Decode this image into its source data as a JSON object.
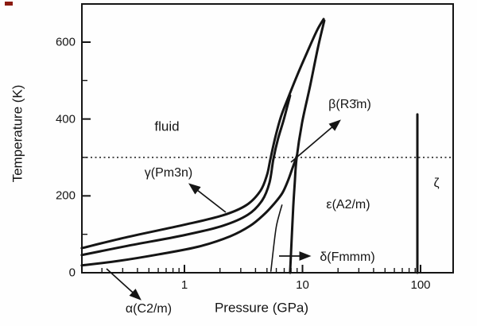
{
  "figure": {
    "background": "#fefefe",
    "ink_color": "#151515"
  },
  "chart_data": {
    "type": "line",
    "title": "",
    "xlabel": "Pressure (GPa)",
    "ylabel": "Temperature (K)",
    "x_scale": "log",
    "xlim": [
      0.135,
      190
    ],
    "ylim": [
      0,
      700
    ],
    "grid": false,
    "legend": "none",
    "x_major_ticks": [
      {
        "value": 1,
        "label": "1"
      },
      {
        "value": 10,
        "label": "10"
      },
      {
        "value": 100,
        "label": "100"
      }
    ],
    "y_major_ticks": [
      {
        "value": 0,
        "label": "0"
      },
      {
        "value": 200,
        "label": "200"
      },
      {
        "value": 400,
        "label": "400"
      },
      {
        "value": 600,
        "label": "600"
      }
    ],
    "y_minor_ticks": [
      100,
      300,
      500
    ],
    "annotations": {
      "room_temperature_dotted_line_K": 300
    },
    "phase_labels": {
      "fluid": "fluid",
      "gamma": "γ(Pm3n)",
      "beta": "β(R3̄m)",
      "epsilon": "ε(A2/m)",
      "delta": "δ(Fmmm)",
      "alpha": "α(C2/m)",
      "zeta": "ζ"
    },
    "series": [
      {
        "name": "melting-curve-fluid-boundary",
        "width": 3,
        "points": [
          [
            0.135,
            64
          ],
          [
            0.33,
            93
          ],
          [
            0.97,
            124
          ],
          [
            2.1,
            149
          ],
          [
            3.35,
            176
          ],
          [
            4.4,
            213
          ],
          [
            5.0,
            254
          ],
          [
            5.35,
            296
          ],
          [
            5.9,
            354
          ],
          [
            6.6,
            408
          ],
          [
            7.6,
            457
          ],
          [
            9.0,
            513
          ],
          [
            11.0,
            575
          ],
          [
            13.3,
            631
          ],
          [
            15.1,
            660
          ]
        ]
      },
      {
        "name": "gamma-beta-boundary",
        "width": 3,
        "points": [
          [
            0.135,
            46
          ],
          [
            0.33,
            70
          ],
          [
            0.97,
            97
          ],
          [
            2.1,
            122
          ],
          [
            3.45,
            151
          ],
          [
            4.55,
            188
          ],
          [
            5.25,
            234
          ],
          [
            5.67,
            296
          ],
          [
            6.2,
            348
          ],
          [
            6.95,
            399
          ],
          [
            7.85,
            461
          ]
        ]
      },
      {
        "name": "alpha-beta-boundary",
        "width": 3,
        "points": [
          [
            0.135,
            19
          ],
          [
            0.28,
            31
          ],
          [
            0.61,
            48
          ],
          [
            1.32,
            68
          ],
          [
            2.45,
            95
          ],
          [
            3.6,
            122
          ],
          [
            4.7,
            151
          ],
          [
            5.77,
            180
          ],
          [
            6.74,
            207
          ],
          [
            7.5,
            238
          ],
          [
            8.2,
            271
          ],
          [
            9.0,
            306
          ]
        ]
      },
      {
        "name": "delta-epsilon-boundary",
        "width": 3,
        "points": [
          [
            7.85,
            0
          ],
          [
            8.1,
            89
          ],
          [
            8.35,
            172
          ],
          [
            8.6,
            234
          ],
          [
            8.9,
            296
          ],
          [
            9.9,
            389
          ],
          [
            11.6,
            486
          ],
          [
            13.5,
            585
          ],
          [
            15.3,
            656
          ]
        ]
      },
      {
        "name": "beta-delta-boundary",
        "width": 1.6,
        "points": [
          [
            5.4,
            4
          ],
          [
            5.7,
            68
          ],
          [
            6.0,
            120
          ],
          [
            6.4,
            155
          ],
          [
            6.7,
            176
          ]
        ]
      },
      {
        "name": "zeta-boundary",
        "width": 3,
        "points": [
          [
            94,
            0
          ],
          [
            94,
            412
          ]
        ]
      }
    ]
  }
}
